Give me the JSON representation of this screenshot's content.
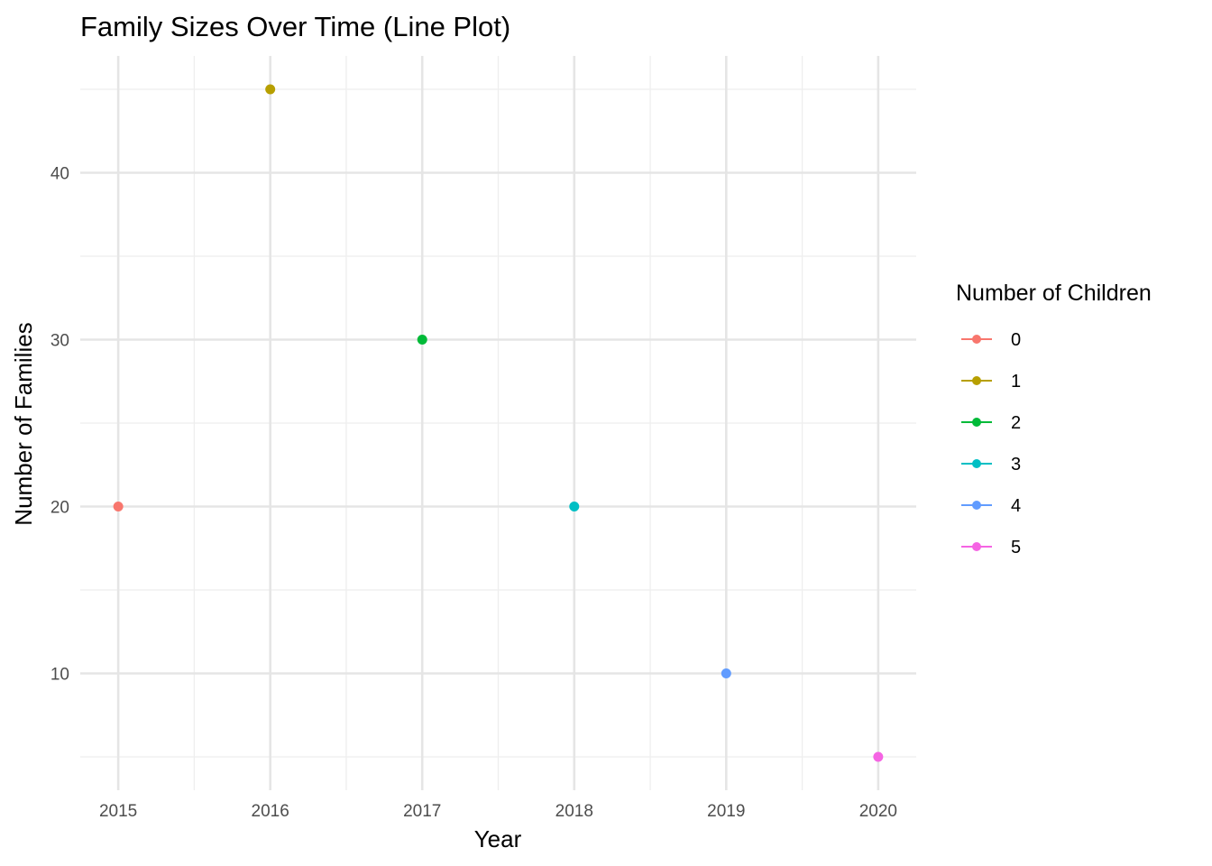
{
  "chart_data": {
    "type": "line",
    "title": "Family Sizes Over Time (Line Plot)",
    "xlabel": "Year",
    "ylabel": "Number of Families",
    "xlim": [
      2014.75,
      2020.25
    ],
    "ylim": [
      3,
      47
    ],
    "x_ticks": [
      2015,
      2016,
      2017,
      2018,
      2019,
      2020
    ],
    "x_tick_labels": [
      "2015",
      "2016",
      "2017",
      "2018",
      "2019",
      "2020"
    ],
    "y_ticks": [
      10,
      20,
      30,
      40
    ],
    "y_tick_labels": [
      "10",
      "20",
      "30",
      "40"
    ],
    "x_minor_ticks": [
      2015.5,
      2016.5,
      2017.5,
      2018.5,
      2019.5
    ],
    "y_minor_ticks": [
      5,
      15,
      25,
      35,
      45
    ],
    "grid": true,
    "legend": {
      "title": "Number of Children",
      "placement": "right"
    },
    "series": [
      {
        "name": "0",
        "color": "#F8766D",
        "points": [
          [
            2015,
            20
          ]
        ]
      },
      {
        "name": "1",
        "color": "#B79F00",
        "points": [
          [
            2016,
            45
          ]
        ]
      },
      {
        "name": "2",
        "color": "#00BA38",
        "points": [
          [
            2017,
            30
          ]
        ]
      },
      {
        "name": "3",
        "color": "#00BFC4",
        "points": [
          [
            2018,
            20
          ]
        ]
      },
      {
        "name": "4",
        "color": "#619CFF",
        "points": [
          [
            2019,
            10
          ]
        ]
      },
      {
        "name": "5",
        "color": "#F564E3",
        "points": [
          [
            2020,
            5
          ]
        ]
      }
    ]
  }
}
